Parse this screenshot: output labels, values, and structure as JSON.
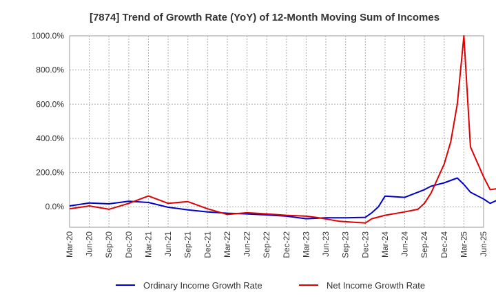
{
  "chart_data": {
    "type": "line",
    "title": "[7874]  Trend of Growth Rate (YoY) of 12-Month Moving Sum of Incomes",
    "xlabel": "",
    "ylabel": "",
    "x_ticks": [
      "Mar-20",
      "Jun-20",
      "Sep-20",
      "Dec-20",
      "Mar-21",
      "Jun-21",
      "Sep-21",
      "Dec-21",
      "Mar-22",
      "Jun-22",
      "Sep-22",
      "Dec-22",
      "Mar-23",
      "Jun-23",
      "Sep-23",
      "Dec-23",
      "Mar-24",
      "Jun-24",
      "Sep-24",
      "Dec-24",
      "Mar-25",
      "Jun-25"
    ],
    "y_ticks": [
      "0.0%",
      "200.0%",
      "400.0%",
      "600.0%",
      "800.0%",
      "1000.0%"
    ],
    "y_tick_values": [
      0,
      200,
      400,
      600,
      800,
      1000
    ],
    "ylim": [
      -120,
      1000
    ],
    "grid": true,
    "legend_position": "bottom",
    "series": [
      {
        "name": "Ordinary Income Growth Rate",
        "color": "#0000cc",
        "values": [
          [
            0,
            5
          ],
          [
            3,
            22
          ],
          [
            6,
            17
          ],
          [
            9,
            32
          ],
          [
            12,
            25
          ],
          [
            15,
            -3
          ],
          [
            18,
            -18
          ],
          [
            21,
            -30
          ],
          [
            24,
            -38
          ],
          [
            27,
            -42
          ],
          [
            30,
            -48
          ],
          [
            33,
            -55
          ],
          [
            36,
            -70
          ],
          [
            39,
            -65
          ],
          [
            42,
            -65
          ],
          [
            45,
            -62
          ],
          [
            46,
            -35
          ],
          [
            47,
            0
          ],
          [
            48,
            62
          ],
          [
            51,
            55
          ],
          [
            54,
            100
          ],
          [
            55,
            120
          ],
          [
            57,
            140
          ],
          [
            59,
            168
          ],
          [
            60,
            130
          ],
          [
            61,
            85
          ],
          [
            63,
            45
          ],
          [
            64,
            20
          ],
          [
            66,
            55
          ],
          [
            67,
            80
          ]
        ]
      },
      {
        "name": "Net Income Growth Rate",
        "color": "#e00000",
        "values": [
          [
            0,
            -12
          ],
          [
            3,
            5
          ],
          [
            6,
            -15
          ],
          [
            9,
            20
          ],
          [
            12,
            63
          ],
          [
            15,
            20
          ],
          [
            18,
            30
          ],
          [
            21,
            -12
          ],
          [
            24,
            -45
          ],
          [
            27,
            -35
          ],
          [
            30,
            -42
          ],
          [
            33,
            -50
          ],
          [
            36,
            -55
          ],
          [
            38,
            -65
          ],
          [
            41,
            -85
          ],
          [
            45,
            -95
          ],
          [
            46,
            -70
          ],
          [
            48,
            -50
          ],
          [
            51,
            -30
          ],
          [
            53,
            -15
          ],
          [
            54,
            20
          ],
          [
            55,
            80
          ],
          [
            57,
            250
          ],
          [
            58,
            380
          ],
          [
            59,
            600
          ],
          [
            60,
            1000
          ],
          [
            61,
            350
          ],
          [
            63,
            175
          ],
          [
            64,
            100
          ],
          [
            66,
            110
          ],
          [
            67,
            118
          ]
        ]
      }
    ]
  }
}
